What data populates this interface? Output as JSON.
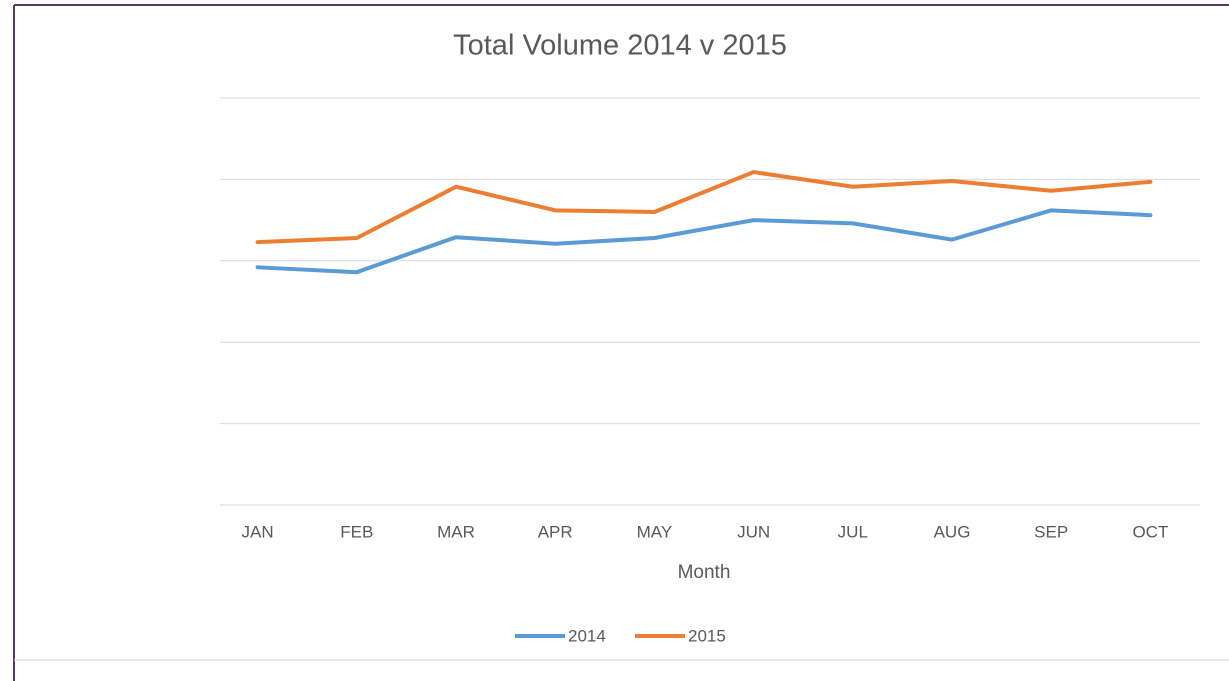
{
  "chart_data": {
    "type": "line",
    "title": "Total Volume 2014 v 2015",
    "x_label": "Month",
    "categories": [
      "JAN",
      "FEB",
      "MAR",
      "APR",
      "MAY",
      "JUN",
      "JUL",
      "AUG",
      "SEP",
      "OCT"
    ],
    "series": [
      {
        "name": "2014",
        "color": "#5b9bd5",
        "values": [
          2.92,
          2.86,
          3.29,
          3.21,
          3.28,
          3.5,
          3.46,
          3.26,
          3.62,
          3.56
        ]
      },
      {
        "name": "2015",
        "color": "#ed7d31",
        "values": [
          3.23,
          3.28,
          3.91,
          3.62,
          3.6,
          4.09,
          3.91,
          3.98,
          3.86,
          3.97
        ]
      }
    ],
    "ylim": [
      0,
      5
    ],
    "yticks": [
      0,
      1,
      2,
      3,
      4,
      5
    ],
    "grid": true,
    "legend": "bottom"
  }
}
